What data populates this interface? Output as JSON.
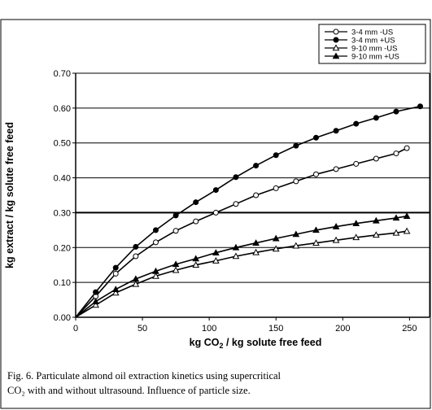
{
  "chart_data": {
    "type": "line",
    "xlabel": "kg CO₂ / kg solute free feed",
    "ylabel": "kg extract / kg solute free feed",
    "xlim": [
      0,
      265
    ],
    "ylim": [
      0,
      0.7
    ],
    "xticks": [
      "0",
      "50",
      "100",
      "150",
      "200",
      "250"
    ],
    "yticks": [
      "0.00",
      "0.10",
      "0.20",
      "0.30",
      "0.40",
      "0.50",
      "0.60",
      "0.70"
    ],
    "grid": "horizontal",
    "legend_position": "top-right",
    "series": [
      {
        "name": "3-4 mm -US",
        "marker": "open-circle",
        "x": [
          0,
          15,
          30,
          45,
          60,
          75,
          90,
          105,
          120,
          135,
          150,
          165,
          180,
          195,
          210,
          225,
          240,
          248
        ],
        "y": [
          0,
          0.06,
          0.125,
          0.175,
          0.215,
          0.248,
          0.275,
          0.3,
          0.325,
          0.35,
          0.37,
          0.39,
          0.41,
          0.425,
          0.44,
          0.455,
          0.47,
          0.485
        ]
      },
      {
        "name": "3-4 mm +US",
        "marker": "filled-circle",
        "x": [
          0,
          15,
          30,
          45,
          60,
          75,
          90,
          105,
          120,
          135,
          150,
          165,
          180,
          195,
          210,
          225,
          240,
          258
        ],
        "y": [
          0,
          0.072,
          0.142,
          0.202,
          0.25,
          0.292,
          0.33,
          0.365,
          0.402,
          0.435,
          0.465,
          0.492,
          0.515,
          0.535,
          0.555,
          0.572,
          0.59,
          0.605
        ]
      },
      {
        "name": "9-10 mm -US",
        "marker": "open-triangle",
        "x": [
          0,
          15,
          30,
          45,
          60,
          75,
          90,
          105,
          120,
          135,
          150,
          165,
          180,
          195,
          210,
          225,
          240,
          248
        ],
        "y": [
          0,
          0.035,
          0.07,
          0.095,
          0.118,
          0.135,
          0.15,
          0.162,
          0.175,
          0.186,
          0.196,
          0.205,
          0.213,
          0.221,
          0.229,
          0.236,
          0.242,
          0.247
        ]
      },
      {
        "name": "9-10 mm +US",
        "marker": "filled-triangle",
        "x": [
          0,
          15,
          30,
          45,
          60,
          75,
          90,
          105,
          120,
          135,
          150,
          165,
          180,
          195,
          210,
          225,
          240,
          248
        ],
        "y": [
          0,
          0.045,
          0.08,
          0.11,
          0.132,
          0.152,
          0.168,
          0.185,
          0.2,
          0.213,
          0.226,
          0.238,
          0.25,
          0.26,
          0.269,
          0.277,
          0.285,
          0.29
        ]
      }
    ]
  },
  "caption": {
    "line1": "Fig. 6. Particulate almond oil extraction kinetics using supercritical",
    "line2": "CO₂ with and without ultrasound. Influence of particle size."
  }
}
